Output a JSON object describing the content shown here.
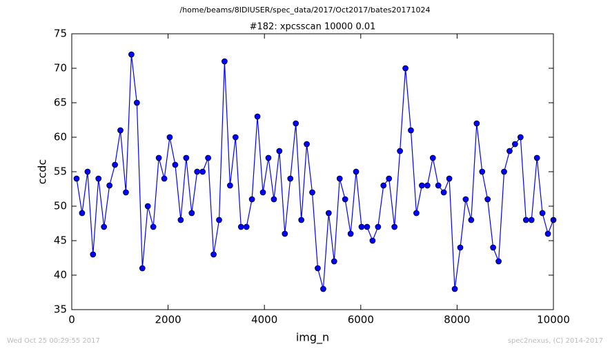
{
  "chart_data": {
    "type": "line",
    "suptitle": "/home/beams/8IDIUSER/spec_data/2017/Oct2017/bates20171024",
    "title": "#182: xpcsscan 10000 0.01",
    "x_label": "img_n",
    "y_label": "ccdc",
    "footer_left": "Wed Oct 25 00:29:55 2017",
    "footer_right": "spec2nexus, (C) 2014-2017",
    "x": [
      100,
      214,
      328,
      441,
      555,
      669,
      783,
      897,
      1010,
      1124,
      1238,
      1352,
      1466,
      1579,
      1693,
      1807,
      1921,
      2034,
      2148,
      2262,
      2376,
      2490,
      2603,
      2717,
      2831,
      2945,
      3059,
      3172,
      3286,
      3400,
      3514,
      3628,
      3741,
      3855,
      3969,
      4083,
      4197,
      4310,
      4424,
      4538,
      4652,
      4766,
      4879,
      4993,
      5107,
      5221,
      5334,
      5448,
      5562,
      5676,
      5790,
      5903,
      6017,
      6131,
      6245,
      6359,
      6472,
      6586,
      6700,
      6814,
      6928,
      7041,
      7155,
      7269,
      7383,
      7497,
      7610,
      7724,
      7838,
      7952,
      8066,
      8179,
      8293,
      8407,
      8521,
      8634,
      8748,
      8862,
      8976,
      9090,
      9203,
      9317,
      9431,
      9545,
      9659,
      9772,
      9886,
      10000
    ],
    "series": [
      {
        "color": "#0000ff",
        "values": [
          54,
          49,
          55,
          43,
          54,
          47,
          53,
          56,
          61,
          52,
          72,
          65,
          41,
          50,
          47,
          57,
          54,
          60,
          56,
          48,
          57,
          49,
          55,
          55,
          57,
          43,
          48,
          71,
          53,
          60,
          47,
          47,
          51,
          63,
          52,
          57,
          51,
          58,
          46,
          54,
          62,
          48,
          59,
          52,
          41,
          38,
          49,
          42,
          54,
          51,
          46,
          55,
          47,
          47,
          45,
          47,
          53,
          54,
          47,
          58,
          70,
          61,
          49,
          53,
          53,
          57,
          53,
          52,
          54,
          38,
          44,
          51,
          48,
          62,
          55,
          51,
          44,
          42,
          55,
          58,
          59,
          60,
          48,
          48,
          57,
          49,
          46,
          48
        ]
      }
    ],
    "xlim": [
      0,
      10000
    ],
    "xticks": [
      0,
      2000,
      4000,
      6000,
      8000,
      10000
    ],
    "ylim": [
      35,
      75
    ],
    "yticks": [
      35,
      40,
      45,
      50,
      55,
      60,
      65,
      70,
      75
    ],
    "grid": false
  }
}
